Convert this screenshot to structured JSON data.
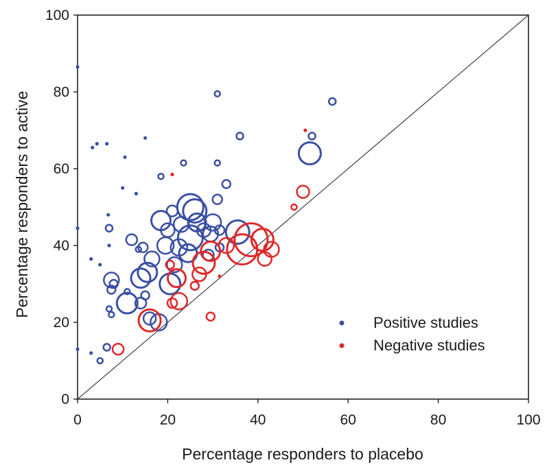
{
  "chart_data": {
    "type": "scatter",
    "title": "",
    "xlabel": "Percentage responders to placebo",
    "ylabel": "Percentage responders to active",
    "xlim": [
      0,
      100
    ],
    "ylim": [
      0,
      100
    ],
    "xticks": [
      "0",
      "20",
      "40",
      "60",
      "80",
      "100"
    ],
    "yticks": [
      "0",
      "20",
      "40",
      "60",
      "80",
      "100"
    ],
    "grid": false,
    "reference_line": "y = x",
    "legend": {
      "placement": "bottom-right"
    },
    "colors": {
      "positive": "#3a4fa3",
      "negative": "#e02828",
      "axis": "#222222"
    },
    "series": [
      {
        "name": "Positive studies",
        "color": "#3a4fa3",
        "marker": "open-circle-size-scaled",
        "points": [
          {
            "x": 0,
            "y": 86.5,
            "r": 2.5
          },
          {
            "x": 0,
            "y": 44.5,
            "r": 2.5
          },
          {
            "x": 0,
            "y": 13,
            "r": 2.5
          },
          {
            "x": 3,
            "y": 36.5,
            "r": 3
          },
          {
            "x": 3,
            "y": 12,
            "r": 3
          },
          {
            "x": 3.3,
            "y": 65.5,
            "r": 3
          },
          {
            "x": 4.3,
            "y": 66.5,
            "r": 2.5
          },
          {
            "x": 5,
            "y": 35,
            "r": 2.5
          },
          {
            "x": 5,
            "y": 10,
            "r": 4
          },
          {
            "x": 6.5,
            "y": 66.5,
            "r": 2.5
          },
          {
            "x": 6.5,
            "y": 13.5,
            "r": 5
          },
          {
            "x": 6.8,
            "y": 48,
            "r": 3
          },
          {
            "x": 7,
            "y": 44.5,
            "r": 5
          },
          {
            "x": 7,
            "y": 40,
            "r": 2.5
          },
          {
            "x": 7,
            "y": 23.5,
            "r": 4
          },
          {
            "x": 7.5,
            "y": 22,
            "r": 4
          },
          {
            "x": 7.5,
            "y": 31,
            "r": 11
          },
          {
            "x": 7.5,
            "y": 28.5,
            "r": 6
          },
          {
            "x": 8,
            "y": 30,
            "r": 6
          },
          {
            "x": 10,
            "y": 55,
            "r": 2.5
          },
          {
            "x": 10.5,
            "y": 63,
            "r": 2.5
          },
          {
            "x": 11,
            "y": 25,
            "r": 15
          },
          {
            "x": 11,
            "y": 28,
            "r": 4
          },
          {
            "x": 12,
            "y": 41.5,
            "r": 8
          },
          {
            "x": 13,
            "y": 53.5,
            "r": 2.5
          },
          {
            "x": 13.5,
            "y": 39,
            "r": 4
          },
          {
            "x": 14,
            "y": 31.5,
            "r": 14
          },
          {
            "x": 14,
            "y": 25,
            "r": 8
          },
          {
            "x": 14.5,
            "y": 39.5,
            "r": 7
          },
          {
            "x": 15,
            "y": 68,
            "r": 2.5
          },
          {
            "x": 15,
            "y": 27,
            "r": 6
          },
          {
            "x": 15.5,
            "y": 33,
            "r": 14
          },
          {
            "x": 16,
            "y": 21,
            "r": 9
          },
          {
            "x": 16.5,
            "y": 36.5,
            "r": 11
          },
          {
            "x": 18,
            "y": 20,
            "r": 12
          },
          {
            "x": 18.5,
            "y": 58,
            "r": 4
          },
          {
            "x": 18.5,
            "y": 46.5,
            "r": 14
          },
          {
            "x": 19.5,
            "y": 40,
            "r": 12
          },
          {
            "x": 20,
            "y": 44,
            "r": 10
          },
          {
            "x": 20.5,
            "y": 30,
            "r": 15
          },
          {
            "x": 21,
            "y": 49,
            "r": 8
          },
          {
            "x": 21.5,
            "y": 35,
            "r": 11
          },
          {
            "x": 22.5,
            "y": 39.5,
            "r": 12
          },
          {
            "x": 23,
            "y": 45.5,
            "r": 11
          },
          {
            "x": 23.5,
            "y": 61.5,
            "r": 4
          },
          {
            "x": 24.5,
            "y": 38,
            "r": 13
          },
          {
            "x": 25,
            "y": 50,
            "r": 19
          },
          {
            "x": 25,
            "y": 42,
            "r": 18
          },
          {
            "x": 26,
            "y": 49,
            "r": 17
          },
          {
            "x": 26.5,
            "y": 46,
            "r": 13
          },
          {
            "x": 28,
            "y": 44,
            "r": 10
          },
          {
            "x": 29,
            "y": 37.5,
            "r": 8
          },
          {
            "x": 29.5,
            "y": 43,
            "r": 11
          },
          {
            "x": 30,
            "y": 46,
            "r": 12
          },
          {
            "x": 31,
            "y": 79.5,
            "r": 4
          },
          {
            "x": 31,
            "y": 61.5,
            "r": 4
          },
          {
            "x": 31,
            "y": 52,
            "r": 7
          },
          {
            "x": 31.5,
            "y": 44,
            "r": 7
          },
          {
            "x": 31.5,
            "y": 39.5,
            "r": 6
          },
          {
            "x": 33,
            "y": 56,
            "r": 6
          },
          {
            "x": 35.5,
            "y": 43.5,
            "r": 17
          },
          {
            "x": 36,
            "y": 68.5,
            "r": 5
          },
          {
            "x": 51.5,
            "y": 64,
            "r": 16
          },
          {
            "x": 52,
            "y": 68.5,
            "r": 5
          },
          {
            "x": 56.5,
            "y": 77.5,
            "r": 5
          }
        ]
      },
      {
        "name": "Negative studies",
        "color": "#e02828",
        "marker": "open-circle-size-scaled",
        "points": [
          {
            "x": 9,
            "y": 13,
            "r": 8
          },
          {
            "x": 16,
            "y": 20.5,
            "r": 16
          },
          {
            "x": 20.5,
            "y": 35,
            "r": 6
          },
          {
            "x": 21,
            "y": 25,
            "r": 7
          },
          {
            "x": 21,
            "y": 58.5,
            "r": 2.5
          },
          {
            "x": 22,
            "y": 31.5,
            "r": 13
          },
          {
            "x": 22.5,
            "y": 25.5,
            "r": 12
          },
          {
            "x": 26,
            "y": 29.5,
            "r": 6
          },
          {
            "x": 27,
            "y": 32.5,
            "r": 10
          },
          {
            "x": 28,
            "y": 35.5,
            "r": 16
          },
          {
            "x": 29.5,
            "y": 38.5,
            "r": 14
          },
          {
            "x": 29.5,
            "y": 21.5,
            "r": 6
          },
          {
            "x": 31.5,
            "y": 32,
            "r": 2.5
          },
          {
            "x": 33,
            "y": 40,
            "r": 11
          },
          {
            "x": 36.5,
            "y": 39,
            "r": 22
          },
          {
            "x": 38.5,
            "y": 41.5,
            "r": 24
          },
          {
            "x": 41,
            "y": 41.5,
            "r": 16
          },
          {
            "x": 41.5,
            "y": 36.5,
            "r": 10
          },
          {
            "x": 43,
            "y": 39,
            "r": 11
          },
          {
            "x": 48,
            "y": 50,
            "r": 4
          },
          {
            "x": 50,
            "y": 54,
            "r": 9
          },
          {
            "x": 50.5,
            "y": 70,
            "r": 2.5
          }
        ]
      }
    ]
  }
}
